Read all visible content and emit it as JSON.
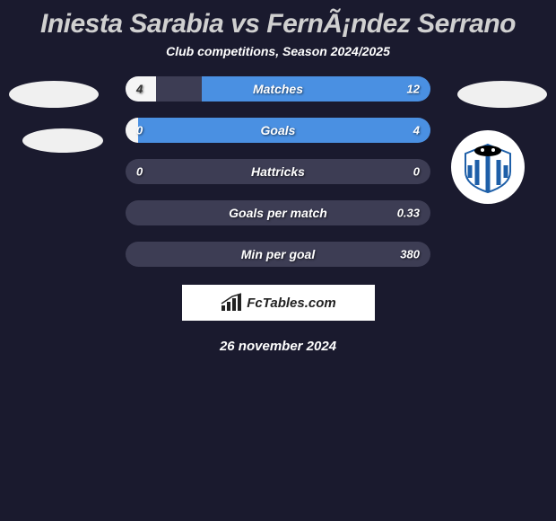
{
  "header": {
    "title": "Iniesta Sarabia vs FernÃ¡ndez Serrano",
    "subtitle": "Club competitions, Season 2024/2025"
  },
  "colors": {
    "background": "#1a1a2e",
    "bar_empty": "#3d3d54",
    "left_fill": "#f5f5f5",
    "right_fill": "#4a90e2",
    "text_main": "#ffffff",
    "title_color": "#d0d0d0"
  },
  "bars": [
    {
      "label": "Matches",
      "left_value": "4",
      "right_value": "12",
      "left_fill_pct": 10,
      "right_fill_pct": 75,
      "left_fill_color": "#f5f5f5",
      "right_fill_color": "#4a90e2"
    },
    {
      "label": "Goals",
      "left_value": "0",
      "right_value": "4",
      "left_fill_pct": 4,
      "right_fill_pct": 96,
      "left_fill_color": "#f5f5f5",
      "right_fill_color": "#4a90e2"
    },
    {
      "label": "Hattricks",
      "left_value": "0",
      "right_value": "0",
      "left_fill_pct": 0,
      "right_fill_pct": 0,
      "left_fill_color": "#f5f5f5",
      "right_fill_color": "#4a90e2"
    },
    {
      "label": "Goals per match",
      "left_value": "",
      "right_value": "0.33",
      "left_fill_pct": 0,
      "right_fill_pct": 0,
      "left_fill_color": "#f5f5f5",
      "right_fill_color": "#4a90e2"
    },
    {
      "label": "Min per goal",
      "left_value": "",
      "right_value": "380",
      "left_fill_pct": 0,
      "right_fill_pct": 0,
      "left_fill_color": "#f5f5f5",
      "right_fill_color": "#4a90e2"
    }
  ],
  "branding": {
    "text": "FcTables.com"
  },
  "date": "26 november 2024",
  "club_badge": {
    "primary": "#1e5fa8",
    "secondary": "#ffffff",
    "accent": "#000000"
  }
}
